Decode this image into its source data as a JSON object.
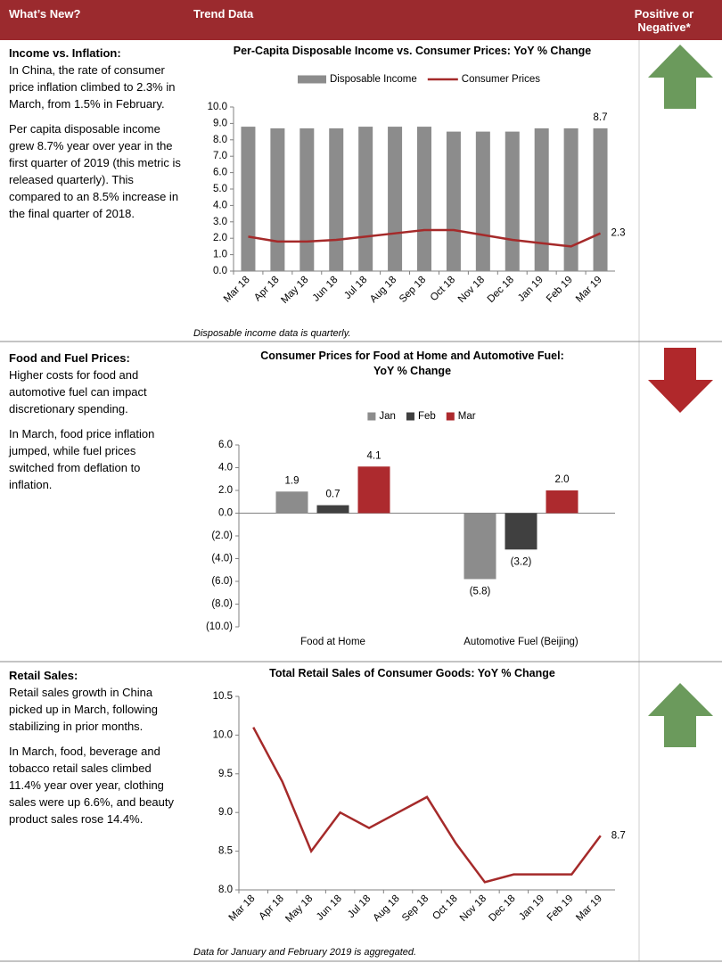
{
  "header": {
    "columns": [
      "What’s New?",
      "Trend Data",
      "Positive or Negative*"
    ]
  },
  "sections": [
    {
      "heading": "Income vs. Inflation:",
      "paragraphs": [
        "In China, the rate of consumer price inflation climbed to 2.3% in March, from 1.5% in February.",
        "Per capita disposable income grew 8.7% year over year in the first quarter of 2019 (this metric is released quarterly). This compared to an 8.5% increase in the final quarter of 2018."
      ],
      "chart": {
        "type": "combo",
        "title": "Per-Capita Disposable Income vs. Consumer Prices: YoY % Change",
        "categories": [
          "Mar 18",
          "Apr 18",
          "May 18",
          "Jun 18",
          "Jul 18",
          "Aug 18",
          "Sep 18",
          "Oct 18",
          "Nov 18",
          "Dec 18",
          "Jan 19",
          "Feb 19",
          "Mar 19"
        ],
        "series": [
          {
            "name": "Disposable Income",
            "type": "bar",
            "color": "#8c8c8c",
            "values": [
              8.8,
              8.7,
              8.7,
              8.7,
              8.8,
              8.8,
              8.8,
              8.5,
              8.5,
              8.5,
              8.7,
              8.7,
              8.7
            ]
          },
          {
            "name": "Consumer Prices",
            "type": "line",
            "color": "#a52a2a",
            "values": [
              2.1,
              1.8,
              1.8,
              1.9,
              2.1,
              2.3,
              2.5,
              2.5,
              2.2,
              1.9,
              1.7,
              1.5,
              2.3
            ]
          }
        ],
        "data_labels": "last",
        "ylim": [
          0,
          10
        ],
        "yticks": [
          {
            "value": 0,
            "label": "0.0"
          },
          {
            "value": 1,
            "label": "1.0"
          },
          {
            "value": 2,
            "label": "2.0"
          },
          {
            "value": 3,
            "label": "3.0"
          },
          {
            "value": 4,
            "label": "4.0"
          },
          {
            "value": 5,
            "label": "5.0"
          },
          {
            "value": 6,
            "label": "6.0"
          },
          {
            "value": 7,
            "label": "7.0"
          },
          {
            "value": 8,
            "label": "8.0"
          },
          {
            "value": 9,
            "label": "9.0"
          },
          {
            "value": 10,
            "label": "10.0"
          }
        ],
        "grid": false,
        "note": "Disposable income data is quarterly."
      }
    },
    {
      "heading": "Food and Fuel Prices:",
      "paragraphs": [
        "Higher costs for food and automotive fuel can impact discretionary spending.",
        "In March, food price inflation jumped, while fuel prices switched from deflation to inflation."
      ],
      "chart": {
        "type": "bar",
        "title": "Consumer Prices for Food at Home and Automotive Fuel: YoY % Change",
        "categories": [
          "Food at Home",
          "Automotive Fuel (Beijing)"
        ],
        "series": [
          {
            "name": "Jan",
            "color": "#8c8c8c",
            "values": [
              1.9,
              -5.8
            ],
            "value_labels": [
              "1.9",
              "(5.8)"
            ]
          },
          {
            "name": "Feb",
            "color": "#404040",
            "values": [
              0.7,
              -3.2
            ],
            "value_labels": [
              "0.7",
              "(3.2)"
            ]
          },
          {
            "name": "Mar",
            "color": "#ad2a2e",
            "values": [
              4.1,
              2.0
            ],
            "value_labels": [
              "4.1",
              "2.0"
            ]
          }
        ],
        "data_labels": "all",
        "ylim": [
          -10,
          6
        ],
        "yticks": [
          {
            "value": -10,
            "label": "(10.0)"
          },
          {
            "value": -8,
            "label": "(8.0)"
          },
          {
            "value": -6,
            "label": "(6.0)"
          },
          {
            "value": -4,
            "label": "(4.0)"
          },
          {
            "value": -2,
            "label": "(2.0)"
          },
          {
            "value": 0,
            "label": "0.0"
          },
          {
            "value": 2,
            "label": "2.0"
          },
          {
            "value": 4,
            "label": "4.0"
          },
          {
            "value": 6,
            "label": "6.0"
          }
        ],
        "grid": false
      }
    },
    {
      "heading": "Retail Sales:",
      "paragraphs": [
        "Retail sales growth in China picked up in March, following stabilizing in prior months.",
        "In March, food, beverage and tobacco retail sales climbed 11.4% year over year, clothing sales were up 6.6%, and beauty product sales rose 14.4%."
      ],
      "chart": {
        "type": "line",
        "title": "Total Retail Sales of Consumer Goods: YoY % Change",
        "categories": [
          "Mar 18",
          "Apr 18",
          "May 18",
          "Jun 18",
          "Jul 18",
          "Aug 18",
          "Sep 18",
          "Oct 18",
          "Nov 18",
          "Dec 18",
          "Jan 19",
          "Feb 19",
          "Mar 19"
        ],
        "series": [
          {
            "name": "Retail Sales",
            "color": "#a52a2a",
            "values": [
              10.1,
              9.4,
              8.5,
              9.0,
              8.8,
              9.0,
              9.2,
              8.6,
              8.1,
              8.2,
              8.2,
              8.2,
              8.7
            ]
          }
        ],
        "legend": false,
        "data_labels": "last",
        "ylim": [
          8,
          10.5
        ],
        "yticks": [
          {
            "value": 8,
            "label": "8.0"
          },
          {
            "value": 8.5,
            "label": "8.5"
          },
          {
            "value": 9,
            "label": "9.0"
          },
          {
            "value": 9.5,
            "label": "9.5"
          },
          {
            "value": 10,
            "label": "10.0"
          },
          {
            "value": 10.5,
            "label": "10.5"
          }
        ],
        "grid": false,
        "note": "Data for January and February 2019 is aggregated."
      }
    }
  ]
}
